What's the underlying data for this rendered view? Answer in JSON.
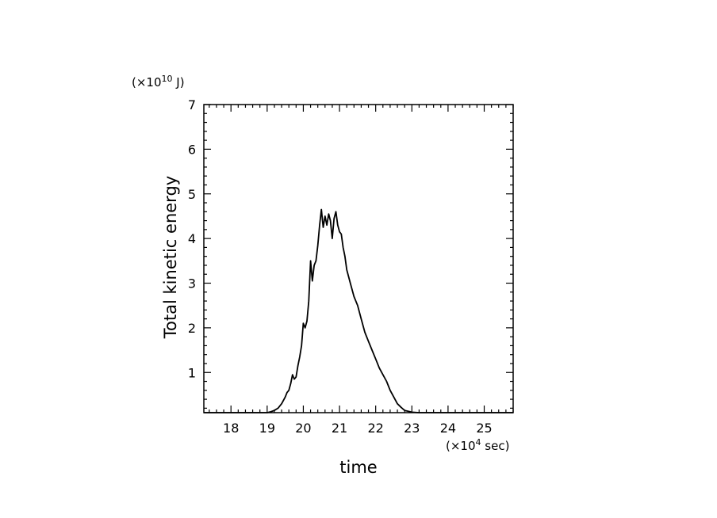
{
  "chart_data": {
    "type": "line",
    "title": "",
    "xlabel": "time",
    "ylabel": "Total kinetic energy",
    "x_unit": {
      "prefix": "(×10",
      "exp": "4",
      "suffix": " sec)"
    },
    "y_unit": {
      "prefix": "(×10",
      "exp": "10",
      "suffix": " J)"
    },
    "xlim": [
      17.25,
      25.8
    ],
    "ylim": [
      0.1,
      7
    ],
    "x_ticks": [
      18,
      19,
      20,
      21,
      22,
      23,
      24,
      25
    ],
    "y_ticks": [
      1,
      2,
      3,
      4,
      5,
      6,
      7
    ],
    "grid": false,
    "legend": "none",
    "line_color": "#000000",
    "series": [
      {
        "x": [
          17.25,
          18.0,
          18.5,
          19.0,
          19.1,
          19.2,
          19.3,
          19.4,
          19.5,
          19.55,
          19.6,
          19.65,
          19.7,
          19.75,
          19.8,
          19.85,
          19.9,
          19.95,
          20.0,
          20.05,
          20.1,
          20.15,
          20.2,
          20.25,
          20.3,
          20.35,
          20.4,
          20.45,
          20.5,
          20.55,
          20.6,
          20.65,
          20.7,
          20.75,
          20.8,
          20.85,
          20.9,
          20.95,
          21.0,
          21.05,
          21.1,
          21.15,
          21.2,
          21.3,
          21.4,
          21.5,
          21.6,
          21.7,
          21.8,
          21.9,
          22.0,
          22.1,
          22.2,
          22.3,
          22.4,
          22.5,
          22.6,
          22.7,
          22.8,
          22.9,
          23.0,
          23.2,
          23.4,
          23.6,
          24.0,
          25.0,
          25.8
        ],
        "y": [
          0.1,
          0.1,
          0.1,
          0.1,
          0.12,
          0.15,
          0.2,
          0.3,
          0.45,
          0.55,
          0.6,
          0.75,
          0.95,
          0.85,
          0.9,
          1.15,
          1.35,
          1.6,
          2.1,
          2.0,
          2.15,
          2.6,
          3.5,
          3.05,
          3.4,
          3.5,
          3.85,
          4.3,
          4.65,
          4.25,
          4.5,
          4.3,
          4.55,
          4.4,
          4.0,
          4.45,
          4.6,
          4.3,
          4.15,
          4.1,
          3.8,
          3.6,
          3.3,
          3.0,
          2.7,
          2.5,
          2.2,
          1.9,
          1.7,
          1.5,
          1.3,
          1.1,
          0.95,
          0.8,
          0.6,
          0.45,
          0.3,
          0.22,
          0.15,
          0.13,
          0.11,
          0.1,
          0.1,
          0.1,
          0.1,
          0.1,
          0.1
        ]
      }
    ]
  }
}
